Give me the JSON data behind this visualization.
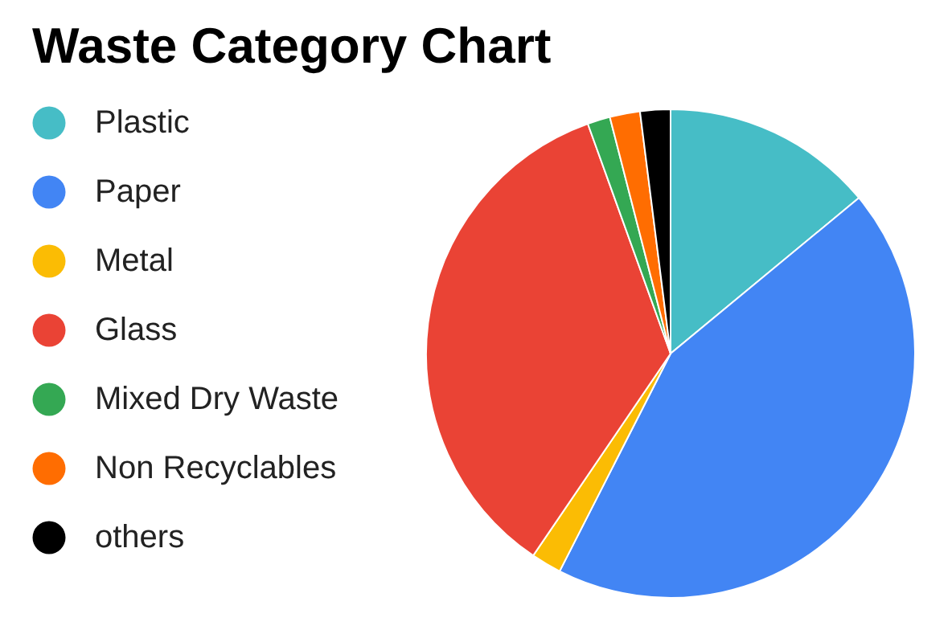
{
  "chart_data": {
    "type": "pie",
    "title": "Waste Category Chart",
    "categories": [
      "Plastic",
      "Paper",
      "Metal",
      "Glass",
      "Mixed Dry Waste",
      "Non Recyclables",
      "others"
    ],
    "values": [
      14,
      43.5,
      2,
      35,
      1.5,
      2,
      2
    ],
    "colors": [
      "#46bdc6",
      "#4285f4",
      "#fbbc04",
      "#ea4335",
      "#34a853",
      "#ff6d01",
      "#000000"
    ],
    "legend": "left"
  }
}
